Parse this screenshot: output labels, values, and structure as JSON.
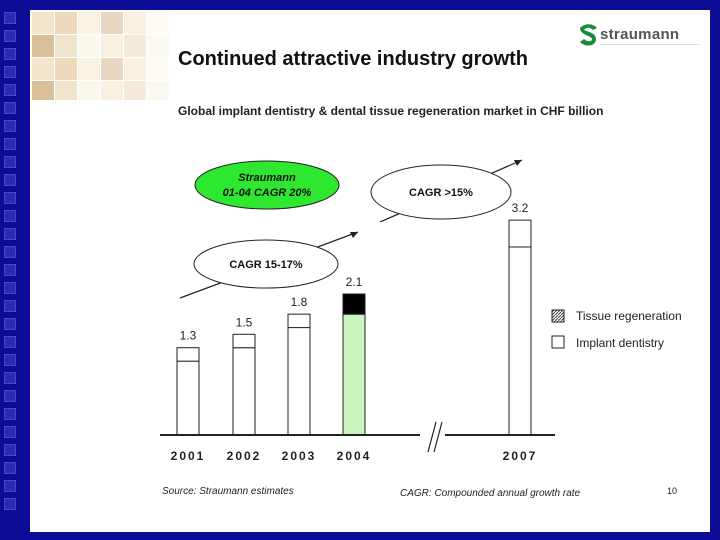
{
  "slide": {
    "title": "Continued attractive industry growth",
    "subtitle": "Global implant dentistry & dental tissue regeneration market in CHF billion",
    "logo_text": "straumann",
    "source": "Source: Straumann estimates",
    "cagr_note": "CAGR: Compounded annual growth rate",
    "page_number": "10"
  },
  "callouts": {
    "straumann_line1": "Straumann",
    "straumann_line2": "01-04 CAGR 20%",
    "cagr_early": "CAGR 15-17%",
    "cagr_late": "CAGR >15%"
  },
  "chart_data": {
    "type": "bar",
    "stacked": true,
    "categories": [
      "2001",
      "2002",
      "2003",
      "2004",
      "2007"
    ],
    "totals_labels": [
      "1.3",
      "1.5",
      "1.8",
      "2.1",
      "3.2"
    ],
    "series": [
      {
        "name": "Implant dentistry",
        "values": [
          1.1,
          1.3,
          1.6,
          1.8,
          2.8
        ]
      },
      {
        "name": "Tissue regeneration",
        "values": [
          0.2,
          0.2,
          0.2,
          0.3,
          0.4
        ]
      }
    ],
    "ylim": [
      0,
      3.5
    ],
    "axis_break_between": [
      "2004",
      "2007"
    ],
    "legend_position": "right",
    "highlight_category": "2004",
    "colors": {
      "implant_2004": "#c8f5c0",
      "tissue_2004": "#000000",
      "bar_default": "#ffffff",
      "outline": "#222222"
    }
  }
}
